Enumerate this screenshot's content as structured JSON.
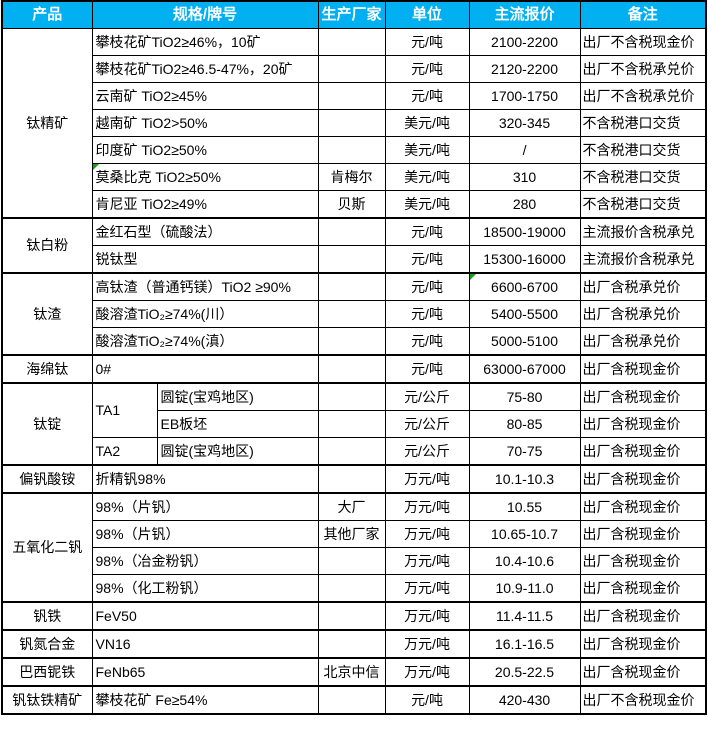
{
  "colors": {
    "header_bg": "#00B0F0",
    "header_text": "#FFFFFF",
    "border": "#000000",
    "marker_green": "#14A014"
  },
  "header": {
    "columns": [
      "产品",
      "规格/牌号",
      "生产厂家",
      "单位",
      "主流报价",
      "备注"
    ]
  },
  "sections": [
    {
      "product": "钛精矿",
      "rows": [
        {
          "spec": "攀枝花矿TiO2≥46%，10矿",
          "maker": "",
          "unit": "元/吨",
          "price": "2100-2200",
          "note": "出厂不含税现金价"
        },
        {
          "spec": "攀枝花矿TiO2≥46.5-47%，20矿",
          "maker": "",
          "unit": "元/吨",
          "price": "2120-2200",
          "note": "出厂不含税承兑价"
        },
        {
          "spec": "云南矿 TiO2≥45%",
          "maker": "",
          "unit": "元/吨",
          "price": "1700-1750",
          "note": "出厂不含税承兑价"
        },
        {
          "spec": "越南矿 TiO2>50%",
          "maker": "",
          "unit": "美元/吨",
          "price": "320-345",
          "note": "不含税港口交货"
        },
        {
          "spec": "印度矿 TiO2≥50%",
          "maker": "",
          "unit": "美元/吨",
          "price": "/",
          "note": "不含税港口交货"
        },
        {
          "spec": "莫桑比克 TiO2≥50%",
          "maker": "肯梅尔",
          "unit": "美元/吨",
          "price": "310",
          "note": "不含税港口交货"
        },
        {
          "spec": "肯尼亚 TiO2≥49%",
          "maker": "贝斯",
          "unit": "美元/吨",
          "price": "280",
          "note": "不含税港口交货"
        }
      ]
    },
    {
      "product": "钛白粉",
      "rows": [
        {
          "spec": "金红石型（硫酸法）",
          "maker": "",
          "unit": "元/吨",
          "price": "18500-19000",
          "note": "主流报价含税承兑"
        },
        {
          "spec": "锐钛型",
          "maker": "",
          "unit": "元/吨",
          "price": "15300-16000",
          "note": "主流报价含税承兑"
        }
      ]
    },
    {
      "product": "钛渣",
      "rows": [
        {
          "spec": "高钛渣（普通钙镁）TiO2 ≥90%",
          "maker": "",
          "unit": "元/吨",
          "price": "6600-6700",
          "note": "出厂含税承兑价"
        },
        {
          "spec": "酸溶渣TiO₂≥74%(川）",
          "maker": "",
          "unit": "元/吨",
          "price": "5400-5500",
          "note": "出厂含税承兑价"
        },
        {
          "spec": "酸溶渣TiO₂≥74%(滇）",
          "maker": "",
          "unit": "元/吨",
          "price": "5000-5100",
          "note": "出厂含税承兑价"
        }
      ]
    },
    {
      "product": "海绵钛",
      "rows": [
        {
          "spec": "0#",
          "maker": "",
          "unit": "元/吨",
          "price": "63000-67000",
          "note": "出厂含税现金价"
        }
      ]
    },
    {
      "product": "钛锭",
      "rows": [
        {
          "grade": "TA1",
          "spec": "圆锭(宝鸡地区)",
          "maker": "",
          "unit": "元/公斤",
          "price": "75-80",
          "note": "出厂含税现金价"
        },
        {
          "spec": "EB板坯",
          "maker": "",
          "unit": "元/公斤",
          "price": "80-85",
          "note": "出厂含税现金价"
        },
        {
          "grade": "TA2",
          "spec": "圆锭(宝鸡地区)",
          "maker": "",
          "unit": "元/公斤",
          "price": "70-75",
          "note": "出厂含税现金价"
        }
      ]
    },
    {
      "product": "偏钒酸铵",
      "rows": [
        {
          "spec": "折精钒98%",
          "maker": "",
          "unit": "万元/吨",
          "price": "10.1-10.3",
          "note": "出厂含税现金价"
        }
      ]
    },
    {
      "product": "五氧化二钒",
      "rows": [
        {
          "spec": "98%（片钒）",
          "maker": "大厂",
          "unit": "万元/吨",
          "price": "10.55",
          "note": "出厂含税现金价"
        },
        {
          "spec": "98%（片钒）",
          "maker": "其他厂家",
          "unit": "万元/吨",
          "price": "10.65-10.7",
          "note": "出厂含税现金价"
        },
        {
          "spec": "98%（冶金粉钒）",
          "maker": "",
          "unit": "万元/吨",
          "price": "10.4-10.6",
          "note": "出厂含税现金价"
        },
        {
          "spec": "98%（化工粉钒）",
          "maker": "",
          "unit": "万元/吨",
          "price": "10.9-11.0",
          "note": "出厂含税现金价"
        }
      ]
    },
    {
      "product": "钒铁",
      "rows": [
        {
          "spec": "FeV50",
          "maker": "",
          "unit": "万元/吨",
          "price": "11.4-11.5",
          "note": "出厂含税现金价"
        }
      ]
    },
    {
      "product": "钒氮合金",
      "rows": [
        {
          "spec": "VN16",
          "maker": "",
          "unit": "万元/吨",
          "price": "16.1-16.5",
          "note": "出厂含税现金价"
        }
      ]
    },
    {
      "product": "巴西铌铁",
      "rows": [
        {
          "spec": "FeNb65",
          "maker": "北京中信",
          "unit": "万元/吨",
          "price": "20.5-22.5",
          "note": "出厂含税现金价"
        }
      ]
    },
    {
      "product": "钒钛铁精矿",
      "rows": [
        {
          "spec": "攀枝花矿 Fe≥54%",
          "maker": "",
          "unit": "元/吨",
          "price": "420-430",
          "note": "出厂不含税现金价"
        }
      ]
    }
  ]
}
